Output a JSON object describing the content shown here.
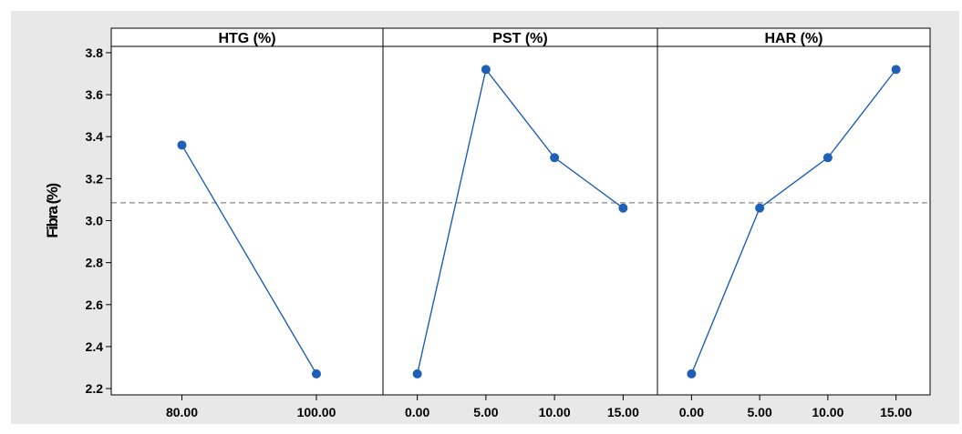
{
  "chart_data": {
    "type": "line",
    "ylabel": "Fibra (%)",
    "ylim": [
      2.17,
      3.83
    ],
    "yticks": [
      "2.2",
      "2.4",
      "2.6",
      "2.8",
      "3.0",
      "3.2",
      "3.4",
      "3.6",
      "3.8"
    ],
    "reference_line": {
      "y": 3.085,
      "style": "dashed"
    },
    "grid": false,
    "colors": {
      "line": "#1f5fb4",
      "marker": "#1f5fb4",
      "reference": "#888888",
      "background": "#e8e8e8"
    },
    "panels": [
      {
        "title": "HTG (%)",
        "categories": [
          "80.00",
          "100.00"
        ],
        "values": [
          3.36,
          2.27
        ]
      },
      {
        "title": "PST (%)",
        "categories": [
          "0.00",
          "5.00",
          "10.00",
          "15.00"
        ],
        "values": [
          2.27,
          3.72,
          3.3,
          3.06
        ]
      },
      {
        "title": "HAR (%)",
        "categories": [
          "0.00",
          "5.00",
          "10.00",
          "15.00"
        ],
        "values": [
          2.27,
          3.06,
          3.3,
          3.72
        ]
      }
    ]
  }
}
